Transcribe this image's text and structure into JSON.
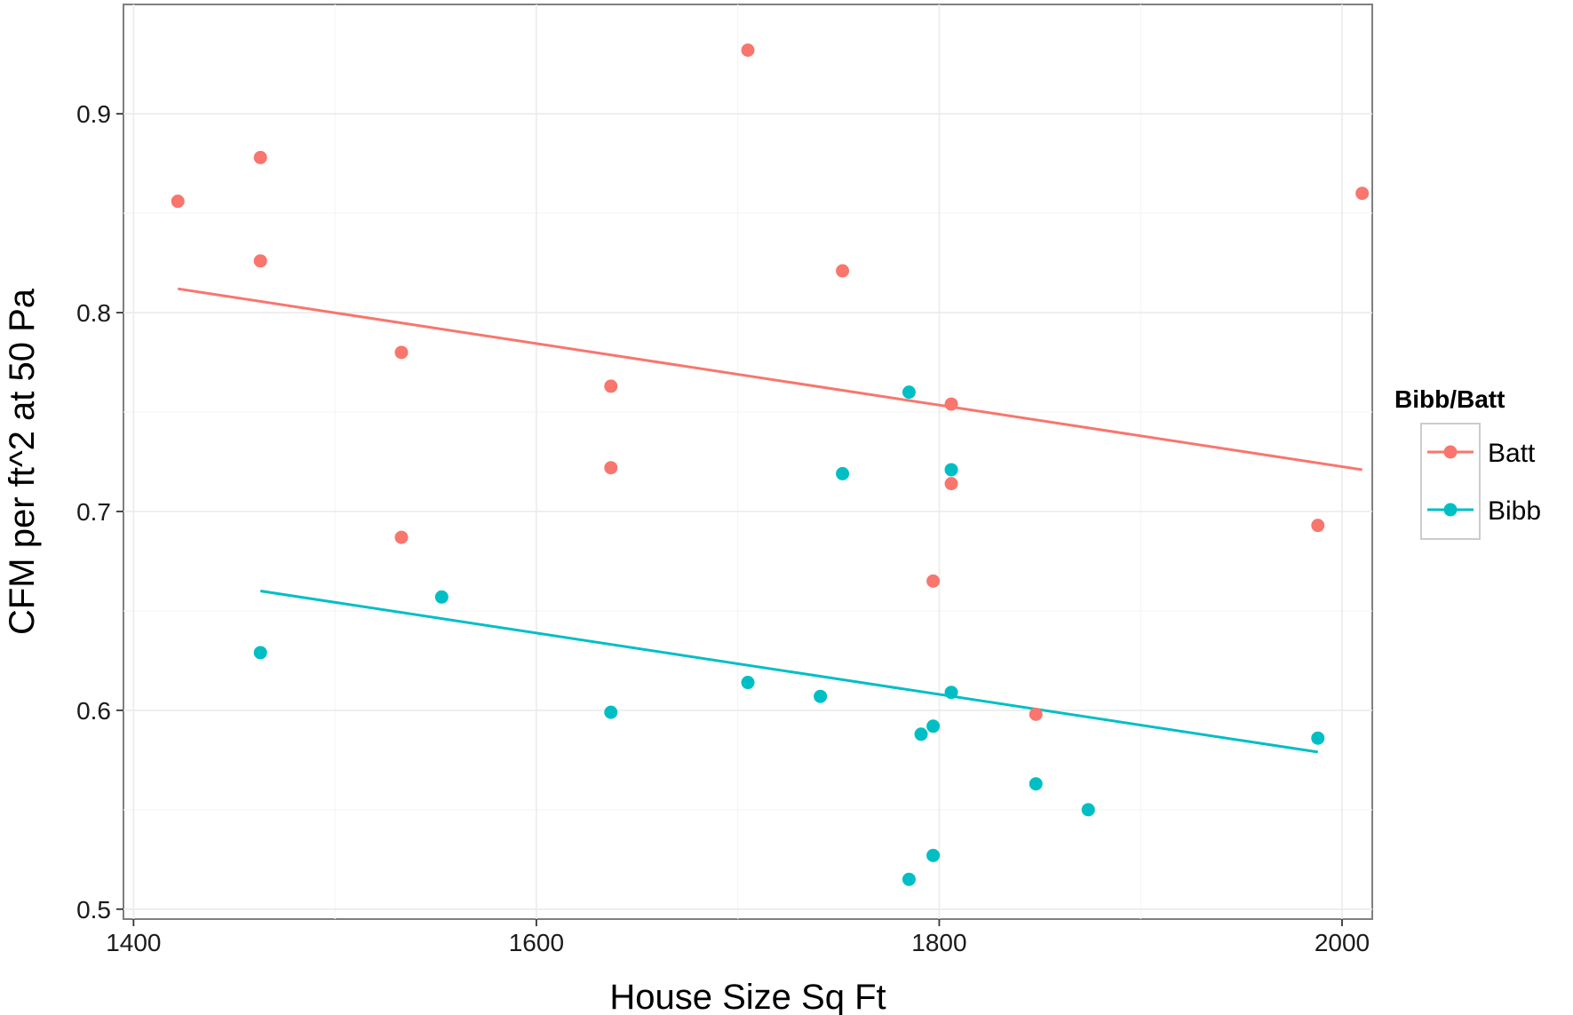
{
  "chart_data": {
    "type": "scatter",
    "title": "",
    "xlabel": "House Size Sq Ft",
    "ylabel": "CFM per ft^2 at 50 Pa",
    "xlim": [
      1395,
      2015
    ],
    "ylim": [
      0.495,
      0.955
    ],
    "x_ticks": [
      1400,
      1600,
      1800,
      2000
    ],
    "y_ticks": [
      0.5,
      0.6,
      0.7,
      0.8,
      0.9
    ],
    "grid": true,
    "legend": {
      "title": "Bibb/Batt",
      "position": "right"
    },
    "series": [
      {
        "name": "Batt",
        "color": "#F8766D",
        "points": [
          [
            1422,
            0.856
          ],
          [
            1463,
            0.878
          ],
          [
            1463,
            0.826
          ],
          [
            1533,
            0.78
          ],
          [
            1533,
            0.687
          ],
          [
            1637,
            0.763
          ],
          [
            1637,
            0.722
          ],
          [
            1705,
            0.932
          ],
          [
            1752,
            0.821
          ],
          [
            1806,
            0.754
          ],
          [
            1806,
            0.714
          ],
          [
            1797,
            0.665
          ],
          [
            1848,
            0.598
          ],
          [
            1988,
            0.693
          ],
          [
            2010,
            0.86
          ]
        ],
        "trend": [
          [
            1422,
            0.812
          ],
          [
            2010,
            0.721
          ]
        ]
      },
      {
        "name": "Bibb",
        "color": "#00BFC4",
        "points": [
          [
            1463,
            0.629
          ],
          [
            1553,
            0.657
          ],
          [
            1637,
            0.599
          ],
          [
            1705,
            0.614
          ],
          [
            1741,
            0.607
          ],
          [
            1752,
            0.719
          ],
          [
            1785,
            0.76
          ],
          [
            1806,
            0.721
          ],
          [
            1806,
            0.609
          ],
          [
            1791,
            0.588
          ],
          [
            1797,
            0.592
          ],
          [
            1797,
            0.527
          ],
          [
            1785,
            0.515
          ],
          [
            1848,
            0.563
          ],
          [
            1874,
            0.55
          ],
          [
            1988,
            0.586
          ]
        ],
        "trend": [
          [
            1463,
            0.66
          ],
          [
            1988,
            0.579
          ]
        ]
      }
    ]
  }
}
